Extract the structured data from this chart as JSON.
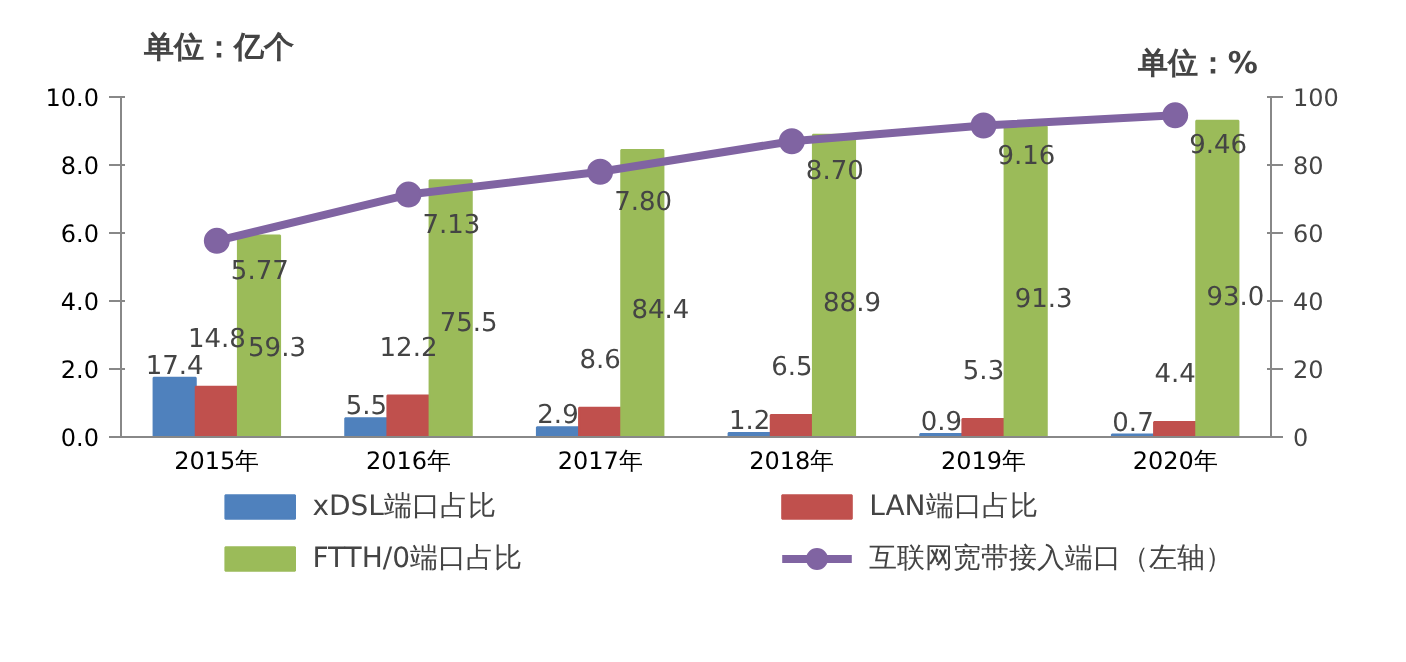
{
  "chart_data": {
    "type": "bar",
    "ylabel": "单位：亿个",
    "y2label": "单位：%",
    "categories": [
      "2015年",
      "2016年",
      "2017年",
      "2018年",
      "2019年",
      "2020年"
    ],
    "ylim": [
      0,
      10
    ],
    "yticks": [
      {
        "value": 0,
        "label": "0.0"
      },
      {
        "value": 2,
        "label": "2.0"
      },
      {
        "value": 4,
        "label": "4.0"
      },
      {
        "value": 6,
        "label": "6.0"
      },
      {
        "value": 8,
        "label": "8.0"
      },
      {
        "value": 10,
        "label": "10.0"
      }
    ],
    "y2lim": [
      0,
      100
    ],
    "y2ticks": [
      0,
      20,
      40,
      60,
      80,
      100
    ],
    "grid": false,
    "legend": "bottom",
    "marker": "circle",
    "series": [
      {
        "name": "xDSL端口占比",
        "color": "#4f81bd",
        "axis": "y2",
        "values": [
          17.4,
          5.5,
          2.9,
          1.2,
          0.9,
          0.7
        ],
        "value_labels": [
          "17.4",
          "5.5",
          "2.9",
          "1.2",
          "0.9",
          "0.7"
        ]
      },
      {
        "name": "LAN端口占比",
        "color": "#c0504d",
        "axis": "y2",
        "values": [
          14.8,
          12.2,
          8.6,
          6.5,
          5.3,
          4.4
        ],
        "value_labels": [
          "14.8",
          "12.2",
          "8.6",
          "6.5",
          "5.3",
          "4.4"
        ]
      },
      {
        "name": "FTTH/0端口占比",
        "color": "#9bbb59",
        "axis": "y2",
        "values": [
          59.3,
          75.5,
          84.4,
          88.9,
          91.3,
          93.0
        ],
        "value_labels": [
          "59.3",
          "75.5",
          "84.4",
          "88.9",
          "91.3",
          "93.0"
        ]
      },
      {
        "name": "互联网宽带接入端口（左轴）",
        "type": "line",
        "color": "#8064a2",
        "values": [
          5.77,
          7.13,
          7.8,
          8.7,
          9.16,
          9.46
        ],
        "value_labels": [
          "5.77",
          "7.13",
          "7.80",
          "8.70",
          "9.16",
          "9.46"
        ]
      }
    ]
  }
}
